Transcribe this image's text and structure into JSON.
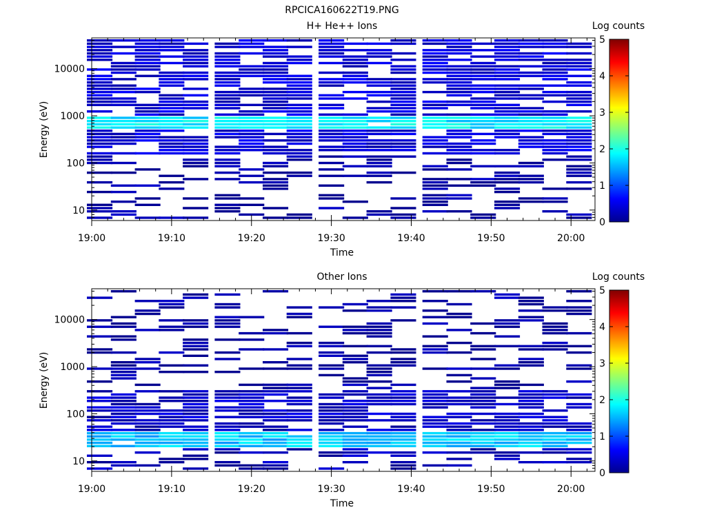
{
  "figure_title": "RPCICA160622T19.PNG",
  "colors": {
    "colormap": [
      "#00008f",
      "#0000ff",
      "#0080ff",
      "#00ffff",
      "#80ff80",
      "#ffff00",
      "#ff8000",
      "#ff0000",
      "#800000"
    ],
    "background": "#ffffff",
    "axes": "#000000"
  },
  "chart_data": [
    {
      "type": "heatmap",
      "title": "H+ He++ Ions",
      "xlabel": "Time",
      "ylabel": "Energy (eV)",
      "y_scale": "log",
      "xlim": [
        "19:00",
        "20:03"
      ],
      "ylim": [
        6,
        45000
      ],
      "x_ticks": [
        "19:00",
        "19:10",
        "19:20",
        "19:30",
        "19:40",
        "19:50",
        "20:00"
      ],
      "y_ticks": [
        "10",
        "100",
        "1000",
        "10000"
      ],
      "time_bins": [
        "19:01",
        "19:04",
        "19:07",
        "19:10",
        "19:13",
        "19:17",
        "19:20",
        "19:23",
        "19:26",
        "19:30",
        "19:33",
        "19:36",
        "19:39",
        "19:43",
        "19:46",
        "19:49",
        "19:52",
        "19:55",
        "19:58",
        "20:01"
      ],
      "features": [
        {
          "energy_range_ev": [
            550,
            1000
          ],
          "log_counts": 1.8,
          "description": "persistent band"
        },
        {
          "energy_range_ev": [
            150,
            45000
          ],
          "log_counts": 0.4,
          "description": "broad background"
        },
        {
          "energy_range_ev": [
            6,
            150
          ],
          "log_counts": 0.1,
          "description": "sparse low-energy counts"
        }
      ],
      "colorbar": {
        "label": "Log counts",
        "ticks": [
          "0",
          "1",
          "2",
          "3",
          "4",
          "5"
        ],
        "range": [
          0,
          5
        ]
      },
      "grid": false
    },
    {
      "type": "heatmap",
      "title": "Other Ions",
      "xlabel": "Time",
      "ylabel": "Energy (eV)",
      "y_scale": "log",
      "xlim": [
        "19:00",
        "20:03"
      ],
      "ylim": [
        6,
        45000
      ],
      "x_ticks": [
        "19:00",
        "19:10",
        "19:20",
        "19:30",
        "19:40",
        "19:50",
        "20:00"
      ],
      "y_ticks": [
        "10",
        "100",
        "1000",
        "10000"
      ],
      "time_bins": [
        "19:01",
        "19:04",
        "19:07",
        "19:10",
        "19:13",
        "19:17",
        "19:20",
        "19:23",
        "19:26",
        "19:30",
        "19:33",
        "19:36",
        "19:39",
        "19:43",
        "19:46",
        "19:49",
        "19:52",
        "19:55",
        "19:58",
        "20:01"
      ],
      "features": [
        {
          "energy_range_ev": [
            20,
            40
          ],
          "log_counts": 1.6,
          "description": "persistent band"
        },
        {
          "energy_range_ev": [
            40,
            300
          ],
          "log_counts": 0.3,
          "description": "moderate counts"
        },
        {
          "energy_range_ev": [
            300,
            45000
          ],
          "log_counts": 0.1,
          "description": "sparse counts"
        },
        {
          "energy_range_ev": [
            6,
            20
          ],
          "log_counts": 0.2,
          "description": "sparse low-energy counts"
        }
      ],
      "colorbar": {
        "label": "Log counts",
        "ticks": [
          "0",
          "1",
          "2",
          "3",
          "4",
          "5"
        ],
        "range": [
          0,
          5
        ]
      },
      "grid": false
    }
  ]
}
